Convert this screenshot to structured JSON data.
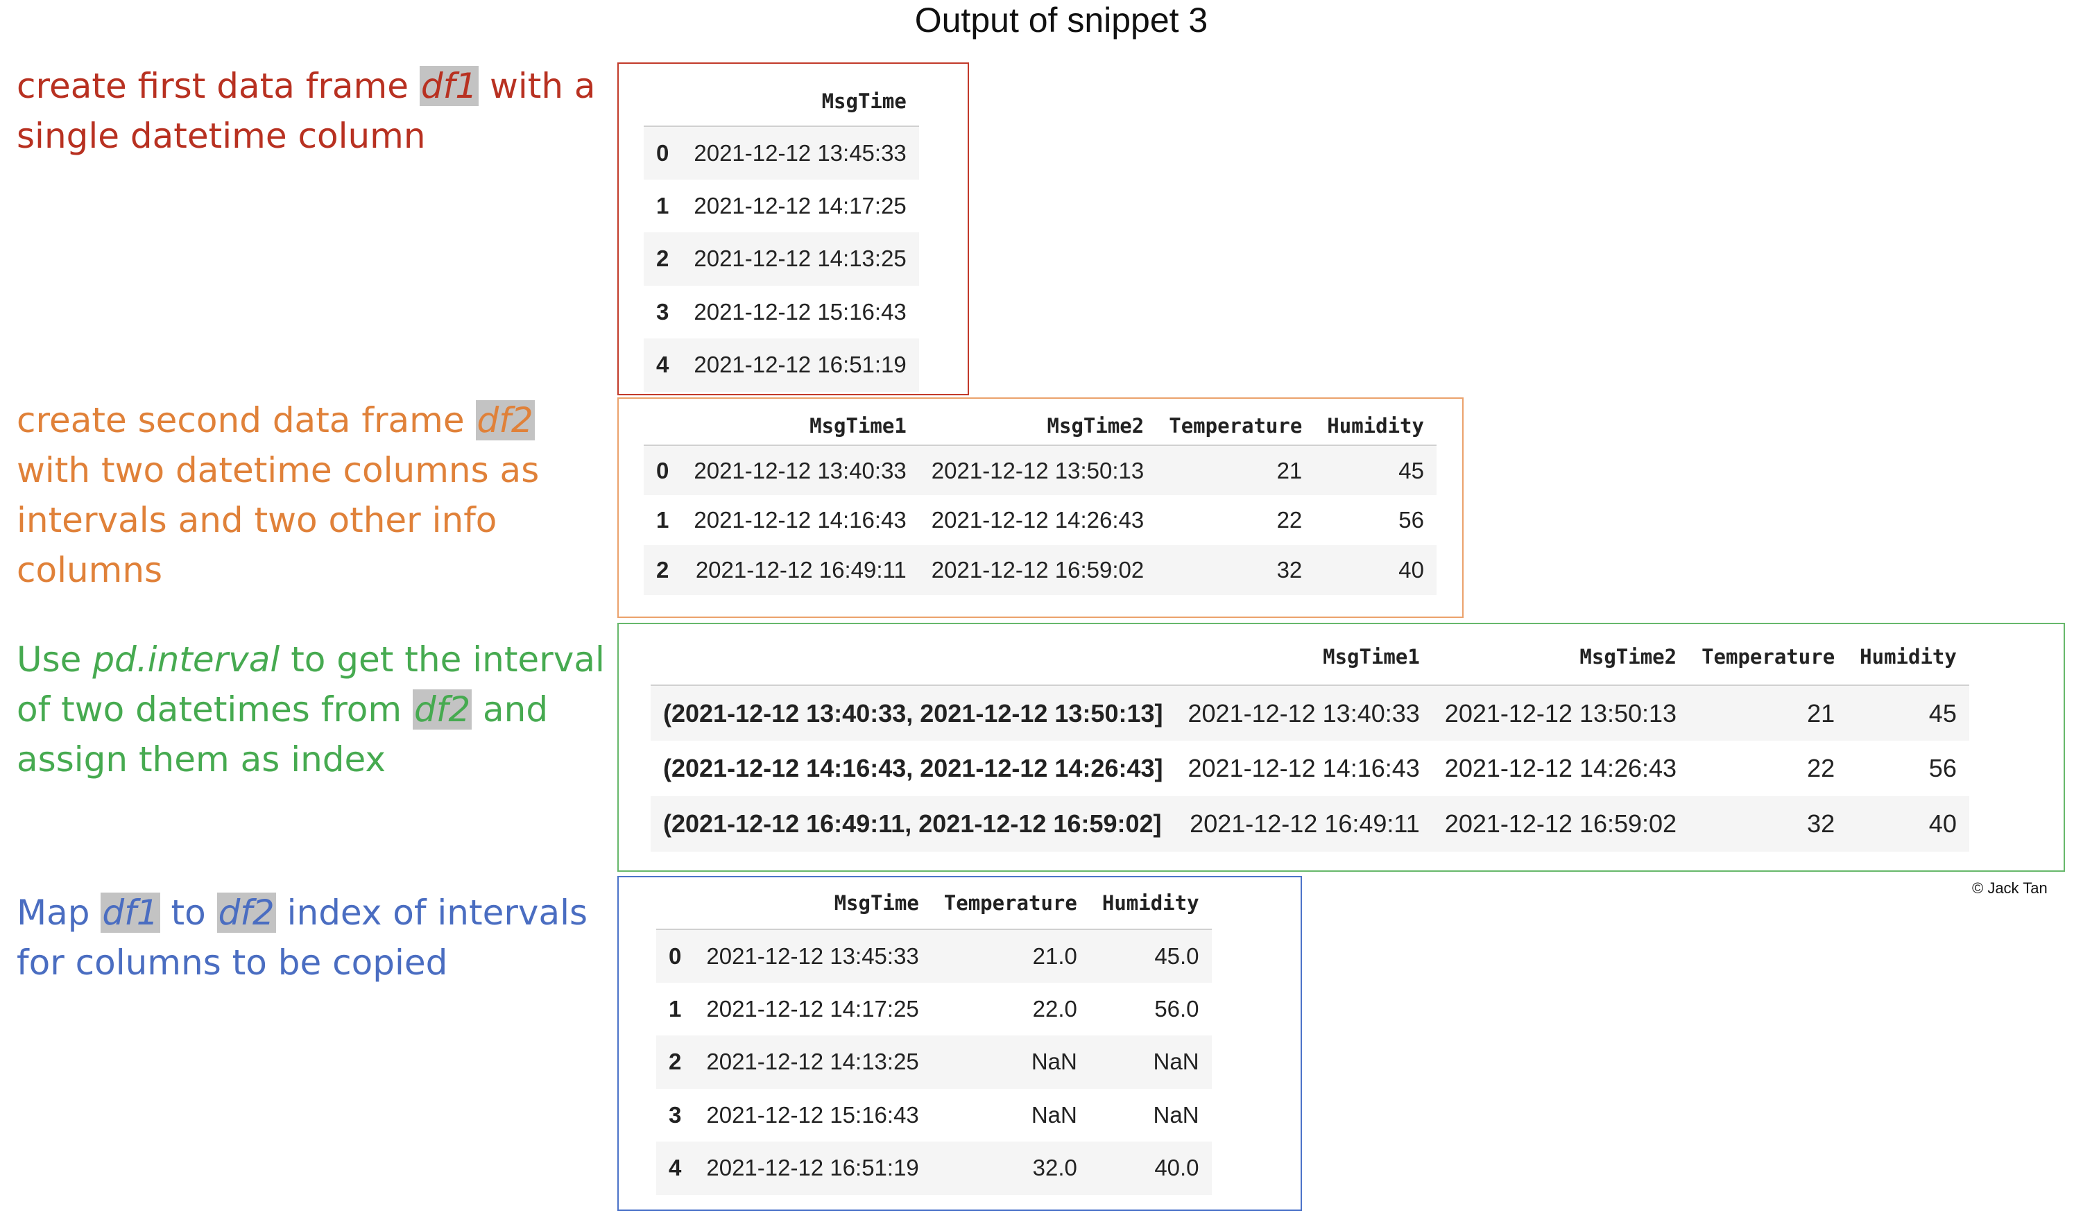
{
  "title": "Output of snippet 3",
  "captions": {
    "c1": {
      "a": "create first data frame ",
      "hl": "df1",
      "b": " with a single datetime column"
    },
    "c2": {
      "a": "create second data frame ",
      "hl": "df2",
      "b": " with two datetime columns as intervals and two other info columns"
    },
    "c3": {
      "a": "Use ",
      "it": "pd.interval",
      "b": " to get the interval of two datetimes from ",
      "hl": "df2",
      "c": " and assign them as index"
    },
    "c4": {
      "a": "Map ",
      "hl1": "df1",
      "b": " to ",
      "hl2": "df2",
      "c": " index of intervals for columns to be copied"
    }
  },
  "colors": {
    "red": "#b83121",
    "orange": "#e08139",
    "green": "#46aa50",
    "blue": "#4a6dc1"
  },
  "df1": {
    "columns": [
      "MsgTime"
    ],
    "rows": [
      {
        "index": "0",
        "values": [
          "2021-12-12 13:45:33"
        ]
      },
      {
        "index": "1",
        "values": [
          "2021-12-12 14:17:25"
        ]
      },
      {
        "index": "2",
        "values": [
          "2021-12-12 14:13:25"
        ]
      },
      {
        "index": "3",
        "values": [
          "2021-12-12 15:16:43"
        ]
      },
      {
        "index": "4",
        "values": [
          "2021-12-12 16:51:19"
        ]
      }
    ]
  },
  "df2": {
    "columns": [
      "MsgTime1",
      "MsgTime2",
      "Temperature",
      "Humidity"
    ],
    "rows": [
      {
        "index": "0",
        "values": [
          "2021-12-12 13:40:33",
          "2021-12-12 13:50:13",
          "21",
          "45"
        ]
      },
      {
        "index": "1",
        "values": [
          "2021-12-12 14:16:43",
          "2021-12-12 14:26:43",
          "22",
          "56"
        ]
      },
      {
        "index": "2",
        "values": [
          "2021-12-12 16:49:11",
          "2021-12-12 16:59:02",
          "32",
          "40"
        ]
      }
    ]
  },
  "df2_interval": {
    "columns": [
      "MsgTime1",
      "MsgTime2",
      "Temperature",
      "Humidity"
    ],
    "rows": [
      {
        "index": "(2021-12-12 13:40:33, 2021-12-12 13:50:13]",
        "values": [
          "2021-12-12 13:40:33",
          "2021-12-12 13:50:13",
          "21",
          "45"
        ]
      },
      {
        "index": "(2021-12-12 14:16:43, 2021-12-12 14:26:43]",
        "values": [
          "2021-12-12 14:16:43",
          "2021-12-12 14:26:43",
          "22",
          "56"
        ]
      },
      {
        "index": "(2021-12-12 16:49:11, 2021-12-12 16:59:02]",
        "values": [
          "2021-12-12 16:49:11",
          "2021-12-12 16:59:02",
          "32",
          "40"
        ]
      }
    ]
  },
  "df_mapped": {
    "columns": [
      "MsgTime",
      "Temperature",
      "Humidity"
    ],
    "rows": [
      {
        "index": "0",
        "values": [
          "2021-12-12 13:45:33",
          "21.0",
          "45.0"
        ]
      },
      {
        "index": "1",
        "values": [
          "2021-12-12 14:17:25",
          "22.0",
          "56.0"
        ]
      },
      {
        "index": "2",
        "values": [
          "2021-12-12 14:13:25",
          "NaN",
          "NaN"
        ]
      },
      {
        "index": "3",
        "values": [
          "2021-12-12 15:16:43",
          "NaN",
          "NaN"
        ]
      },
      {
        "index": "4",
        "values": [
          "2021-12-12 16:51:19",
          "32.0",
          "40.0"
        ]
      }
    ]
  },
  "credit": "© Jack Tan"
}
